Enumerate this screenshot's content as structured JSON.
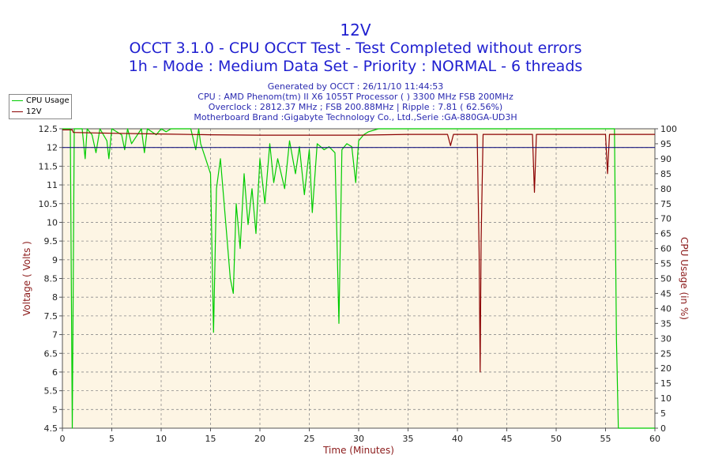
{
  "titles": {
    "line1": "12V",
    "line2": "OCCT 3.1.0 - CPU OCCT Test - Test Completed without errors",
    "line3": "1h - Mode : Medium Data Set - Priority : NORMAL - 6 threads"
  },
  "info": {
    "generated": "Generated by OCCT : 26/11/10 11:44:53",
    "cpu": "CPU : AMD Phenom(tm) II X6 1055T Processor (  ) 3300 MHz FSB 200MHz",
    "overclock": "Overclock : 2812.37 MHz ; FSB 200.88MHz | Ripple : 7.81 ( 62.56%)",
    "motherboard": "Motherboard Brand :Gigabyte Technology Co., Ltd.,Serie :GA-880GA-UD3H"
  },
  "legend": [
    {
      "label": "CPU Usage",
      "color": "#00cc00"
    },
    {
      "label": "12V",
      "color": "#8b0000"
    }
  ],
  "colors": {
    "plot_bg": "#fdf5e4",
    "cpu": "#00cc00",
    "volt": "#8b0000",
    "threshold": "#1a1a80",
    "left_label": "#8b1a1a",
    "right_label": "#8b1a1a",
    "xlabel": "#8b1a1a"
  },
  "chart_data": {
    "type": "line",
    "xlabel": "Time (Minutes)",
    "ylabel": "Voltage ( Volts )",
    "y2label": "CPU Usage (in %)",
    "xlim": [
      0,
      60
    ],
    "ylim": [
      4.5,
      12.5
    ],
    "y2lim": [
      0,
      100
    ],
    "xticks": [
      0,
      5,
      10,
      15,
      20,
      25,
      30,
      35,
      40,
      45,
      50,
      55,
      60
    ],
    "yticks": [
      4.5,
      5,
      5.5,
      6,
      6.5,
      7,
      7.5,
      8,
      8.5,
      9,
      9.5,
      10,
      10.5,
      11,
      11.5,
      12,
      12.5
    ],
    "y2ticks": [
      0,
      5,
      10,
      15,
      20,
      25,
      30,
      35,
      40,
      45,
      50,
      55,
      60,
      65,
      70,
      75,
      80,
      85,
      90,
      95,
      100
    ],
    "grid": true,
    "legend_position": "top-left",
    "threshold": 12,
    "series": [
      {
        "name": "CPU Usage",
        "axis": "right",
        "x": [
          0,
          0.8,
          1.0,
          1.2,
          2.0,
          2.3,
          2.5,
          3.0,
          3.4,
          3.8,
          4.5,
          4.7,
          5.0,
          6.0,
          6.3,
          6.6,
          7.0,
          8.0,
          8.3,
          8.6,
          9.5,
          10.0,
          10.5,
          11.0,
          12.0,
          13.0,
          13.5,
          13.8,
          14.0,
          14.5,
          15.0,
          15.3,
          15.6,
          16.0,
          16.5,
          17.0,
          17.3,
          17.6,
          18.0,
          18.4,
          18.8,
          19.2,
          19.6,
          20.0,
          20.5,
          21.0,
          21.4,
          21.8,
          22.5,
          23.0,
          23.6,
          24.0,
          24.5,
          25.0,
          25.3,
          25.8,
          26.5,
          27.0,
          27.6,
          28.0,
          28.3,
          28.8,
          29.3,
          29.7,
          30.0,
          30.5,
          31.0,
          32.0,
          33.0,
          34.0,
          35.0,
          36.0,
          37.0,
          38.0,
          39.0,
          40.0,
          42.0,
          44.0,
          46.0,
          48.0,
          50.0,
          52.0,
          54.0,
          55.6,
          55.9,
          56.1,
          56.3,
          60.0
        ],
        "values": [
          100,
          100,
          0,
          100,
          100,
          90,
          100,
          98,
          92,
          100,
          96,
          90,
          100,
          98,
          93,
          100,
          95,
          100,
          92,
          100,
          98,
          100,
          99,
          100,
          100,
          100,
          93,
          100,
          95,
          90,
          85,
          32,
          80,
          90,
          70,
          50,
          45,
          75,
          60,
          85,
          68,
          80,
          65,
          90,
          75,
          95,
          82,
          90,
          80,
          96,
          85,
          94,
          78,
          93,
          72,
          95,
          93,
          94,
          92,
          35,
          93,
          95,
          94,
          82,
          96,
          98,
          99,
          100,
          100,
          100,
          100,
          100,
          100,
          100,
          100,
          100,
          100,
          100,
          100,
          100,
          100,
          100,
          100,
          100,
          100,
          30,
          0,
          0
        ]
      },
      {
        "name": "12V",
        "axis": "left",
        "x": [
          0,
          1.0,
          1.1,
          5.0,
          10.0,
          15.0,
          20.0,
          25.0,
          30.0,
          35.0,
          39.0,
          39.3,
          39.6,
          42.0,
          42.2,
          42.3,
          42.4,
          42.6,
          47.6,
          47.8,
          48.0,
          55.0,
          55.2,
          55.4,
          56.0,
          60.0
        ],
        "values": [
          12.47,
          12.47,
          12.4,
          12.38,
          12.36,
          12.34,
          12.33,
          12.33,
          12.33,
          12.35,
          12.35,
          12.05,
          12.35,
          12.35,
          9.2,
          6.0,
          9.5,
          12.35,
          12.35,
          10.8,
          12.35,
          12.35,
          11.3,
          12.35,
          12.35,
          12.35
        ]
      }
    ]
  }
}
